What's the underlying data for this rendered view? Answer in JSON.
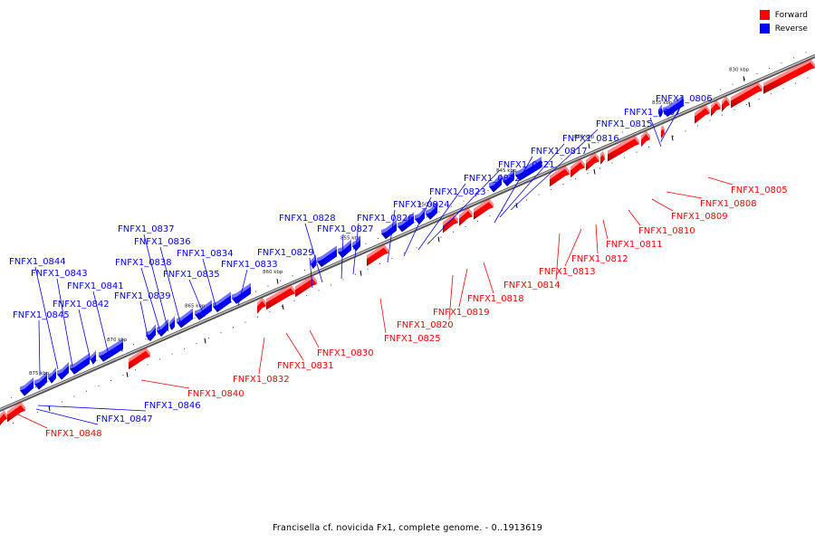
{
  "legend": {
    "forward": {
      "label": "Forward",
      "color": "#ff0000"
    },
    "reverse": {
      "label": "Reverse",
      "color": "#0000ff"
    }
  },
  "caption": "Francisella cf. novicida Fx1, complete genome. - 0..1913619",
  "colors": {
    "forward": "#ff0000",
    "reverse": "#0000ff",
    "backbone": "#777777"
  },
  "ticks": [
    "830 kbp",
    "835 kbp",
    "840 kbp",
    "845 kbp",
    "850 kbp",
    "855 kbp",
    "860 kbp",
    "865 kbp",
    "870 kbp",
    "875 kbp"
  ],
  "reverse_genes": [
    "FNFX1_0806",
    "FNFX1_0807",
    "FNFX1_0815",
    "FNFX1_0816",
    "FNFX1_0817",
    "FNFX1_0821",
    "FNFX1_0822",
    "FNFX1_0823",
    "FNFX1_0824",
    "FNFX1_0826",
    "FNFX1_0827",
    "FNFX1_0828",
    "FNFX1_0829",
    "FNFX1_0833",
    "FNFX1_0834",
    "FNFX1_0835",
    "FNFX1_0836",
    "FNFX1_0837",
    "FNFX1_0838",
    "FNFX1_0839",
    "FNFX1_0841",
    "FNFX1_0842",
    "FNFX1_0843",
    "FNFX1_0844",
    "FNFX1_0845",
    "FNFX1_0846",
    "FNFX1_0847"
  ],
  "forward_genes": [
    "FNFX1_0805",
    "FNFX1_0808",
    "FNFX1_0809",
    "FNFX1_0810",
    "FNFX1_0811",
    "FNFX1_0812",
    "FNFX1_0813",
    "FNFX1_0814",
    "FNFX1_0818",
    "FNFX1_0819",
    "FNFX1_0820",
    "FNFX1_0825",
    "FNFX1_0830",
    "FNFX1_0831",
    "FNFX1_0832",
    "FNFX1_0840",
    "FNFX1_0848"
  ]
}
